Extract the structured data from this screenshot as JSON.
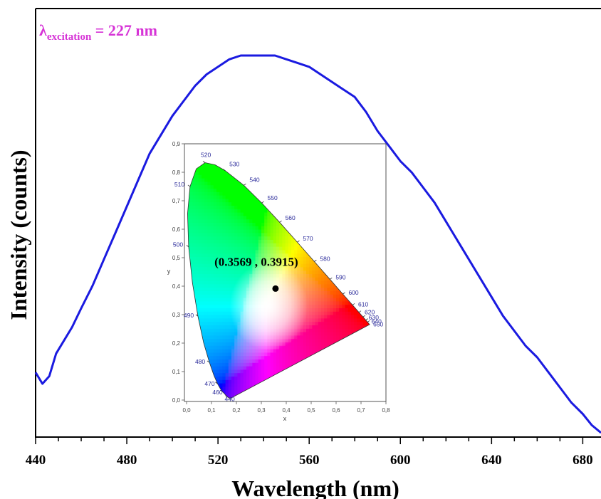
{
  "chart_data": [
    {
      "type": "line",
      "xlabel": "Wavelength (nm)",
      "ylabel": "Intensity (counts)",
      "xlim": [
        440,
        688
      ],
      "ylim": [
        0,
        1.0
      ],
      "x_ticks": [
        440,
        480,
        520,
        560,
        600,
        640,
        680
      ],
      "x_tick_labels": [
        "440",
        "480",
        "520",
        "560",
        "600",
        "640",
        "680"
      ],
      "y_ticks_shown": false,
      "grid": false,
      "annotation": {
        "symbol": "λ",
        "subscript": "excitation",
        "text": " = 227 nm",
        "color": "#d633d6"
      },
      "series": [
        {
          "color": "#1a1ae0",
          "x": [
            440,
            443,
            446,
            449,
            452,
            456,
            460,
            465,
            470,
            475,
            480,
            485,
            490,
            495,
            500,
            505,
            510,
            515,
            520,
            525,
            530,
            535,
            540,
            545,
            550,
            555,
            560,
            565,
            570,
            575,
            580,
            585,
            590,
            595,
            600,
            605,
            610,
            615,
            620,
            625,
            630,
            635,
            640,
            645,
            650,
            655,
            660,
            665,
            670,
            675,
            680,
            684,
            688
          ],
          "y": [
            0.16,
            0.13,
            0.15,
            0.21,
            0.24,
            0.28,
            0.33,
            0.39,
            0.46,
            0.53,
            0.6,
            0.67,
            0.74,
            0.79,
            0.84,
            0.88,
            0.92,
            0.95,
            0.97,
            0.99,
            1.0,
            1.0,
            1.0,
            1.0,
            0.99,
            0.98,
            0.97,
            0.95,
            0.93,
            0.91,
            0.89,
            0.85,
            0.8,
            0.76,
            0.72,
            0.69,
            0.65,
            0.61,
            0.56,
            0.51,
            0.46,
            0.41,
            0.36,
            0.31,
            0.27,
            0.23,
            0.2,
            0.16,
            0.12,
            0.08,
            0.05,
            0.02,
            0.0
          ]
        }
      ]
    },
    {
      "type": "scatter",
      "xlabel": "x",
      "ylabel": "y",
      "xlim": [
        0,
        0.8
      ],
      "ylim": [
        0,
        0.9
      ],
      "x_tick_labels": [
        "0,0",
        "0,1",
        "0,2",
        "0,3",
        "0,4",
        "0,5",
        "0,6",
        "0,7",
        "0,8"
      ],
      "y_tick_labels": [
        "0,0",
        "0,1",
        "0,2",
        "0,3",
        "0,4",
        "0,5",
        "0,6",
        "0,7",
        "0,8",
        "0,9"
      ],
      "spectral_locus_labels": [
        "440",
        "460",
        "470",
        "480",
        "490",
        "500",
        "510",
        "520",
        "530",
        "540",
        "550",
        "560",
        "570",
        "580",
        "590",
        "600",
        "610",
        "620",
        "630",
        "640",
        "650"
      ],
      "point": {
        "x": 0.3569,
        "y": 0.3915,
        "label": "(0.3569 , 0.3915)"
      }
    }
  ]
}
